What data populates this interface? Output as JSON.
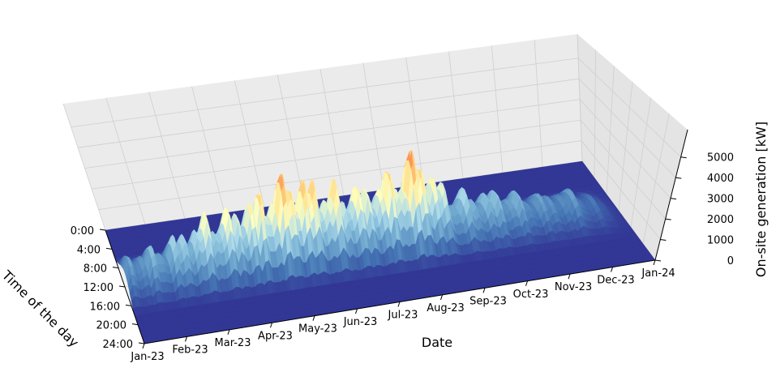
{
  "chart_data": {
    "type": "surface3d",
    "title": "",
    "xlabel": "Date",
    "ylabel": "Time of the day",
    "zlabel": "On-site generation [kW]",
    "x_ticks": [
      "Jan-23",
      "Feb-23",
      "Mar-23",
      "Apr-23",
      "May-23",
      "Jun-23",
      "Jul-23",
      "Aug-23",
      "Sep-23",
      "Oct-23",
      "Nov-23",
      "Dec-23",
      "Jan-24"
    ],
    "y_ticks": [
      "0:00",
      "4:00",
      "8:00",
      "12:00",
      "16:00",
      "20:00",
      "24:00"
    ],
    "z_ticks": [
      "0",
      "1000",
      "2000",
      "3000",
      "4000",
      "5000"
    ],
    "zlim": [
      0,
      5500
    ],
    "colormap": "RdYlBu_r",
    "grid": true,
    "peak_generation_by_month": {
      "months": [
        "Jan-23",
        "Feb-23",
        "Mar-23",
        "Apr-23",
        "May-23",
        "Jun-23",
        "Jul-23",
        "Aug-23",
        "Sep-23",
        "Oct-23",
        "Nov-23",
        "Dec-23",
        "Jan-24"
      ],
      "values": [
        1500,
        2000,
        3300,
        3800,
        5200,
        3900,
        3700,
        5100,
        2400,
        2100,
        1500,
        1300,
        0
      ]
    }
  },
  "colors": {
    "pane_floor": "#f2f2f2",
    "pane_wall": "#ebebeb",
    "grid": "#cfcfcf",
    "surface_low": "#313695",
    "surface_high": "#a50026"
  }
}
